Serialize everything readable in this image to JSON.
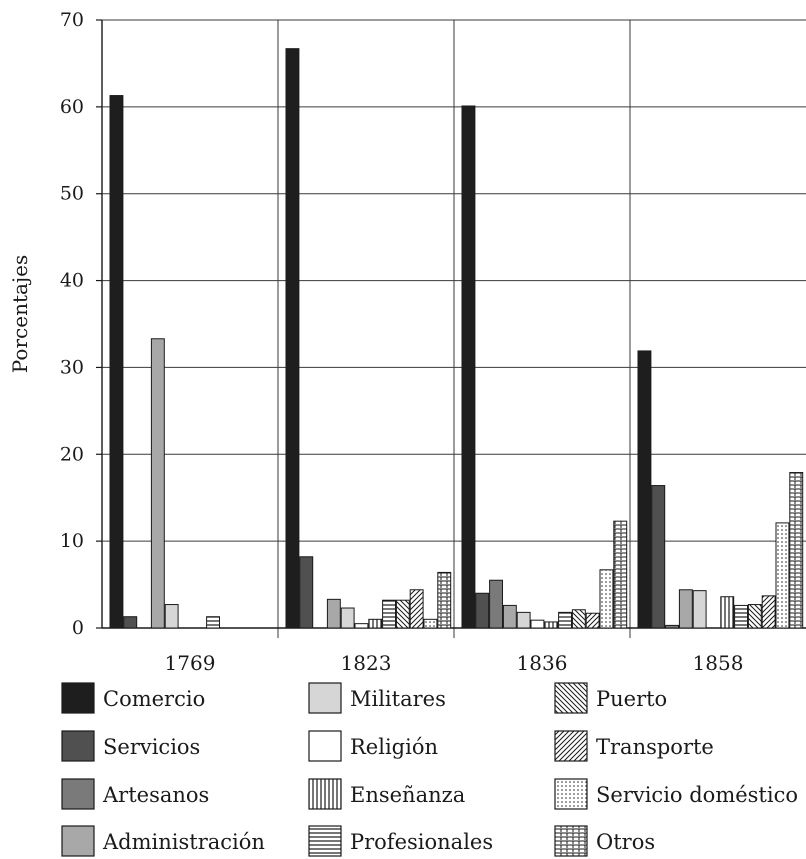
{
  "chart_data": {
    "type": "bar",
    "title": "",
    "xlabel": "",
    "ylabel": "Porcentajes",
    "ylim": [
      0,
      70
    ],
    "yticks": [
      0,
      10,
      20,
      30,
      40,
      50,
      60,
      70
    ],
    "grid": true,
    "legend_position": "bottom",
    "categories": [
      "1769",
      "1823",
      "1836",
      "1858"
    ],
    "series": [
      {
        "name": "Comercio",
        "values": [
          61.3,
          66.7,
          60.1,
          31.9
        ],
        "fill": "#1e1e1e",
        "pattern": "solid"
      },
      {
        "name": "Servicios",
        "values": [
          1.3,
          8.2,
          4.0,
          16.4
        ],
        "fill": "#505050",
        "pattern": "solid"
      },
      {
        "name": "Artesanos",
        "values": [
          0,
          0,
          5.5,
          0.3
        ],
        "fill": "#7a7a7a",
        "pattern": "solid"
      },
      {
        "name": "Administración",
        "values": [
          33.3,
          3.3,
          2.6,
          4.4
        ],
        "fill": "#a8a8a8",
        "pattern": "solid"
      },
      {
        "name": "Militares",
        "values": [
          2.7,
          2.3,
          1.8,
          4.3
        ],
        "fill": "#d6d6d6",
        "pattern": "solid"
      },
      {
        "name": "Religión",
        "values": [
          0,
          0.5,
          0.9,
          0
        ],
        "fill": "#ffffff",
        "pattern": "solid"
      },
      {
        "name": "Enseñanza",
        "values": [
          0,
          1.0,
          0.7,
          3.6
        ],
        "fill": "#ffffff",
        "pattern": "vertical"
      },
      {
        "name": "Profesionales",
        "values": [
          1.3,
          3.2,
          1.8,
          2.6
        ],
        "fill": "#ffffff",
        "pattern": "horizontal"
      },
      {
        "name": "Puerto",
        "values": [
          0,
          3.2,
          2.1,
          2.7
        ],
        "fill": "#ffffff",
        "pattern": "backslash"
      },
      {
        "name": "Transporte",
        "values": [
          0,
          4.4,
          1.7,
          3.7
        ],
        "fill": "#ffffff",
        "pattern": "slash"
      },
      {
        "name": "Servicio doméstico",
        "values": [
          0,
          1.0,
          6.7,
          12.1
        ],
        "fill": "#ffffff",
        "pattern": "dots"
      },
      {
        "name": "Otros",
        "values": [
          0,
          6.4,
          12.3,
          17.9
        ],
        "fill": "#ffffff",
        "pattern": "dashgrid"
      }
    ],
    "legend_columns": [
      [
        "Comercio",
        "Servicios",
        "Artesanos",
        "Administración"
      ],
      [
        "Militares",
        "Religión",
        "Enseñanza",
        "Profesionales"
      ],
      [
        "Puerto",
        "Transporte",
        "Servicio doméstico",
        "Otros"
      ]
    ]
  }
}
